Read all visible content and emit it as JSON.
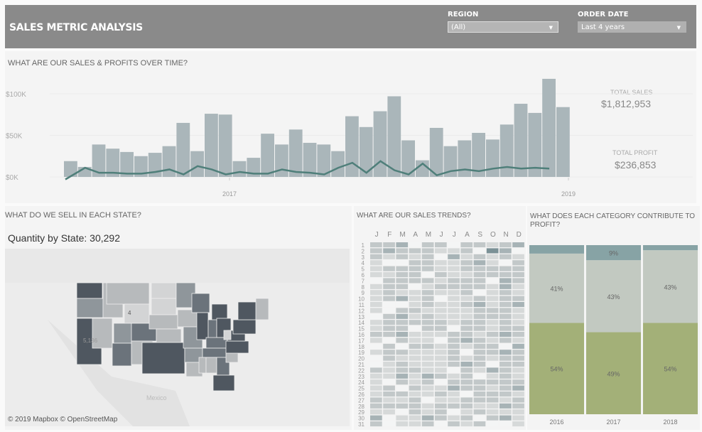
{
  "header": {
    "title": "SALES METRIC ANALYSIS",
    "filters": [
      {
        "label": "REGION",
        "value": "(All)"
      },
      {
        "label": "ORDER DATE",
        "value": "Last 4 years"
      }
    ]
  },
  "sales_section": {
    "title": "WHAT ARE OUR SALES & PROFITS OVER TIME?",
    "total_sales_label": "TOTAL SALES",
    "total_sales": "$1,812,953",
    "total_profit_label": "TOTAL PROFIT",
    "total_profit": "$236,853"
  },
  "map_section": {
    "title": "WHAT DO WE SELL IN EACH STATE?",
    "subtitle": "Quantity by State: 30,292",
    "labels": {
      "wy": "4",
      "ca": "5,136",
      "mexico": "Mexico"
    },
    "attribution": "© 2019 Mapbox © OpenStreetMap",
    "state_levels": {
      "WA": 4,
      "OR": 2,
      "CA": 4,
      "NV": 1,
      "ID": 1,
      "MT": 1,
      "WY": 0,
      "UT": 2,
      "CO": 3,
      "AZ": 3,
      "NM": 1,
      "ND": 0,
      "SD": 0,
      "NE": 1,
      "KS": 1,
      "OK": 2,
      "TX": 4,
      "MN": 2,
      "IA": 1,
      "MO": 2,
      "AR": 2,
      "LA": 1,
      "WI": 3,
      "IL": 4,
      "MI": 4,
      "IN": 3,
      "OH": 4,
      "KY": 3,
      "TN": 3,
      "MS": 1,
      "AL": 1,
      "GA": 3,
      "FL": 4,
      "SC": 1,
      "NC": 4,
      "VA": 4,
      "WV": 0,
      "PA": 4,
      "NY": 4,
      "NE_ENG": 1
    },
    "colors": [
      "#d3d4d5",
      "#b7babc",
      "#8f969b",
      "#6b737b",
      "#4f5760"
    ]
  },
  "trends_section": {
    "title": "WHAT ARE OUR SALES TRENDS?",
    "months": [
      "J",
      "F",
      "M",
      "A",
      "M",
      "J",
      "J",
      "A",
      "S",
      "O",
      "N",
      "D"
    ],
    "colors": [
      "#f4f5f5",
      "#d6d9d9",
      "#c2c8c9",
      "#a7b3b6",
      "#7b9196"
    ],
    "levels": [
      [
        2,
        2,
        3,
        0,
        2,
        2,
        0,
        2,
        2,
        1,
        2,
        3
      ],
      [
        2,
        3,
        2,
        2,
        2,
        1,
        1,
        2,
        0,
        4,
        3,
        0
      ],
      [
        2,
        1,
        2,
        1,
        2,
        0,
        3,
        1,
        2,
        1,
        2,
        1
      ],
      [
        1,
        0,
        0,
        2,
        2,
        1,
        1,
        2,
        3,
        1,
        0,
        2
      ],
      [
        1,
        2,
        2,
        2,
        2,
        1,
        1,
        2,
        2,
        2,
        2,
        2
      ],
      [
        1,
        1,
        2,
        2,
        0,
        2,
        1,
        1,
        2,
        2,
        2,
        2
      ],
      [
        0,
        2,
        2,
        2,
        2,
        1,
        2,
        2,
        2,
        0,
        3,
        2
      ],
      [
        1,
        2,
        2,
        0,
        1,
        2,
        2,
        2,
        2,
        1,
        3,
        1
      ],
      [
        1,
        2,
        1,
        1,
        2,
        1,
        1,
        2,
        0,
        1,
        2,
        1
      ],
      [
        1,
        2,
        3,
        1,
        2,
        0,
        1,
        1,
        2,
        1,
        2,
        2
      ],
      [
        1,
        0,
        0,
        1,
        2,
        1,
        1,
        2,
        3,
        1,
        2,
        3
      ],
      [
        1,
        0,
        2,
        2,
        1,
        1,
        1,
        1,
        2,
        2,
        2,
        1
      ],
      [
        0,
        2,
        3,
        1,
        2,
        1,
        1,
        1,
        2,
        2,
        2,
        1
      ],
      [
        1,
        2,
        2,
        2,
        2,
        2,
        1,
        2,
        2,
        1,
        2,
        1
      ],
      [
        1,
        2,
        2,
        0,
        2,
        2,
        0,
        2,
        2,
        1,
        2,
        2
      ],
      [
        2,
        2,
        3,
        1,
        1,
        1,
        2,
        2,
        1,
        2,
        3,
        2
      ],
      [
        1,
        0,
        2,
        1,
        1,
        0,
        2,
        3,
        2,
        1,
        2,
        1
      ],
      [
        0,
        2,
        0,
        2,
        2,
        1,
        2,
        1,
        2,
        2,
        0,
        3
      ],
      [
        1,
        2,
        2,
        1,
        1,
        1,
        2,
        0,
        2,
        2,
        3,
        2
      ],
      [
        0,
        2,
        1,
        1,
        1,
        1,
        2,
        1,
        2,
        1,
        2,
        2
      ],
      [
        0,
        1,
        2,
        1,
        1,
        1,
        2,
        3,
        2,
        0,
        2,
        2
      ],
      [
        2,
        1,
        2,
        2,
        1,
        1,
        0,
        2,
        1,
        3,
        2,
        1
      ],
      [
        1,
        1,
        3,
        1,
        3,
        2,
        1,
        2,
        0,
        1,
        2,
        1
      ],
      [
        1,
        0,
        2,
        1,
        2,
        0,
        2,
        2,
        2,
        2,
        2,
        2
      ],
      [
        1,
        2,
        0,
        2,
        1,
        1,
        3,
        2,
        2,
        1,
        2,
        3
      ],
      [
        1,
        2,
        2,
        1,
        1,
        2,
        1,
        0,
        2,
        2,
        2,
        1
      ],
      [
        2,
        1,
        1,
        2,
        0,
        1,
        1,
        2,
        2,
        2,
        1,
        2
      ],
      [
        2,
        2,
        2,
        2,
        1,
        2,
        2,
        2,
        1,
        1,
        3,
        2
      ],
      [
        1,
        1,
        0,
        2,
        1,
        2,
        0,
        1,
        2,
        1,
        1,
        1
      ],
      [
        3,
        0,
        1,
        1,
        3,
        2,
        1,
        2,
        0,
        2,
        3,
        1
      ],
      [
        2,
        0,
        1,
        1,
        2,
        0,
        2,
        1,
        2,
        0,
        0,
        1
      ]
    ]
  },
  "category_section": {
    "title_line1": "WHAT DOES EACH CATEGORY CONTRIBUTE TO",
    "title_line2": "PROFIT?"
  },
  "chart_data": [
    {
      "type": "bar",
      "title": "WHAT ARE OUR SALES & PROFITS OVER TIME?",
      "y_ticks": [
        "$0K",
        "$50K",
        "$100K"
      ],
      "x_ticks": [
        "2017",
        "2019"
      ],
      "ylim": [
        0,
        120
      ],
      "unit": "$K",
      "series": [
        {
          "type": "bar",
          "values": [
            19,
            12,
            39,
            34,
            30,
            25,
            29,
            37,
            65,
            31,
            76,
            75,
            19,
            23,
            52,
            39,
            57,
            41,
            39,
            31,
            73,
            60,
            79,
            97,
            44,
            20,
            59,
            37,
            44,
            53,
            45,
            63,
            88,
            77,
            118,
            84
          ]
        },
        {
          "type": "line",
          "values": [
            -3,
            11,
            5,
            5,
            4,
            4,
            6,
            9,
            3,
            13,
            9,
            3,
            6,
            4,
            4,
            9,
            6,
            5,
            3,
            11,
            17,
            5,
            19,
            8,
            3,
            16,
            2,
            7,
            9,
            7,
            10,
            12,
            10,
            11,
            10,
            null
          ],
          "color": "#4f7f7a"
        }
      ]
    },
    {
      "type": "bar",
      "stacked": true,
      "categories": [
        "2016",
        "2017",
        "2018"
      ],
      "series": [
        {
          "values": [
            54,
            49,
            54
          ],
          "labels": [
            "54%",
            "49%",
            "54%"
          ],
          "color": "#a3b078"
        },
        {
          "values": [
            41,
            43,
            43
          ],
          "labels": [
            "41%",
            "43%",
            "43%"
          ],
          "color": "#c2c9c1"
        },
        {
          "values": [
            5,
            9,
            3
          ],
          "labels": [
            "",
            "9%",
            ""
          ],
          "color": "#87a3a5"
        }
      ]
    }
  ]
}
